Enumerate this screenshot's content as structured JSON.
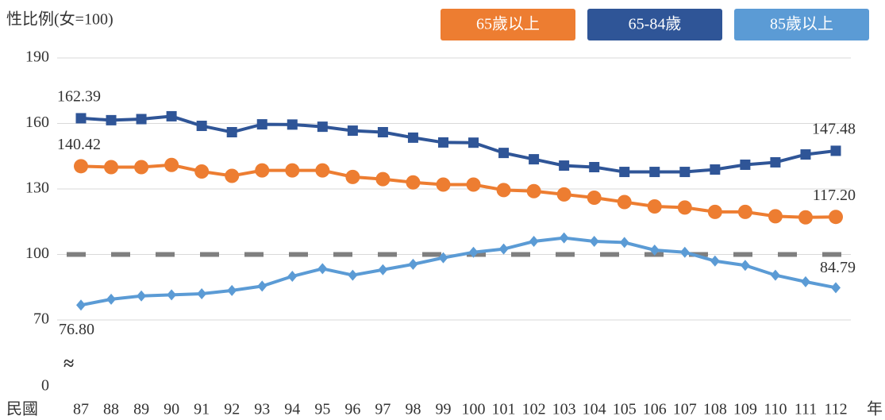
{
  "chart_data": {
    "type": "line",
    "y_axis_label": "性比例(女=100)",
    "x_prefix": "民國",
    "x_suffix": "年",
    "axis_break": "≈",
    "categories": [
      "87",
      "88",
      "89",
      "90",
      "91",
      "92",
      "93",
      "94",
      "95",
      "96",
      "97",
      "98",
      "99",
      "100",
      "101",
      "102",
      "103",
      "104",
      "105",
      "106",
      "107",
      "108",
      "109",
      "110",
      "111",
      "112"
    ],
    "ylim": [
      70,
      190
    ],
    "yticks": [
      0,
      70,
      100,
      130,
      160,
      190
    ],
    "grid": true,
    "reference_line": 100,
    "series": [
      {
        "name": "65歲以上",
        "color": "#ed7d31",
        "marker": "circle",
        "values": [
          140.42,
          140,
          140,
          141,
          138,
          136,
          138.5,
          138.5,
          138.5,
          135.5,
          134.5,
          133,
          132,
          132,
          129.5,
          129,
          127.5,
          126,
          124,
          122,
          121.5,
          119.5,
          119.5,
          117.5,
          117,
          117.2
        ],
        "value_labels": [
          "140.42",
          null,
          null,
          null,
          null,
          null,
          null,
          null,
          null,
          null,
          null,
          null,
          null,
          null,
          null,
          null,
          null,
          null,
          null,
          null,
          null,
          null,
          null,
          null,
          null,
          "117.20"
        ]
      },
      {
        "name": "65-84歲",
        "color": "#2f5597",
        "marker": "square",
        "values": [
          162.39,
          161.5,
          162,
          163.3,
          158.9,
          156,
          159.6,
          159.5,
          158.5,
          156.7,
          156,
          153.5,
          151.3,
          151.2,
          146.5,
          143.6,
          140.7,
          140,
          137.8,
          137.8,
          137.8,
          138.9,
          141.1,
          142.2,
          145.8,
          147.48
        ],
        "value_labels": [
          "162.39",
          null,
          null,
          null,
          null,
          null,
          null,
          null,
          null,
          null,
          null,
          null,
          null,
          null,
          null,
          null,
          null,
          null,
          null,
          null,
          null,
          null,
          null,
          null,
          null,
          "147.48"
        ]
      },
      {
        "name": "85歲以上",
        "color": "#5b9bd5",
        "marker": "diamond",
        "values": [
          76.8,
          79.5,
          81,
          81.5,
          82,
          83.5,
          85.5,
          90,
          93.5,
          90.5,
          93,
          95.5,
          98.5,
          101,
          102.5,
          106,
          107.6,
          106,
          105.5,
          102,
          101,
          97,
          95,
          90.5,
          87.5,
          84.79
        ],
        "value_labels": [
          "76.80",
          null,
          null,
          null,
          null,
          null,
          null,
          null,
          null,
          null,
          null,
          null,
          null,
          null,
          null,
          null,
          null,
          null,
          null,
          null,
          null,
          null,
          null,
          null,
          null,
          "84.79"
        ]
      }
    ]
  }
}
